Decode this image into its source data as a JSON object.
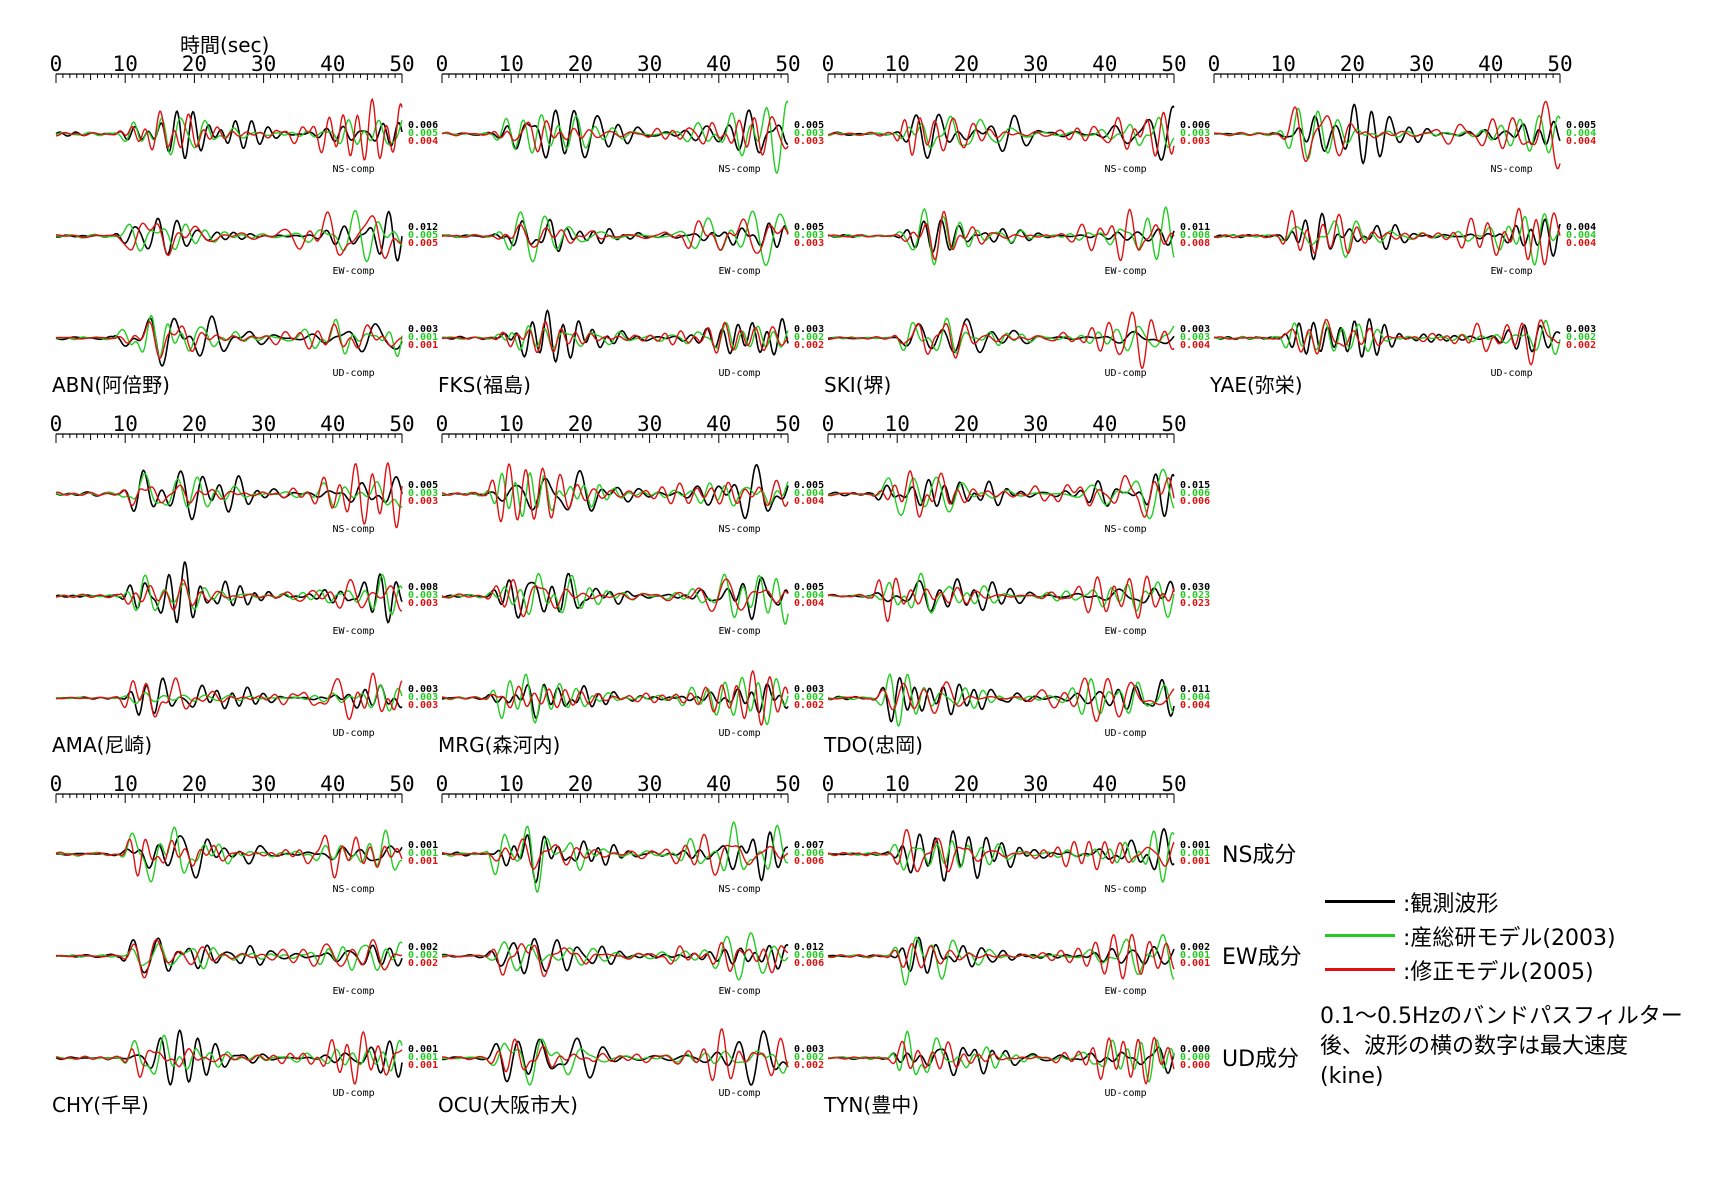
{
  "chart_data": {
    "type": "line",
    "time_axis_label": "時間(sec)",
    "x_ticks": [
      0,
      10,
      20,
      30,
      40,
      50
    ],
    "xlim": [
      0,
      50
    ],
    "series_legend": [
      {
        "key": "obs",
        "name": ":観測波形",
        "color": "#000000"
      },
      {
        "key": "aist",
        "name": ":産総研モデル(2003)",
        "color": "#22cc22"
      },
      {
        "key": "mod",
        "name": ":修正モデル(2005)",
        "color": "#dd1111"
      }
    ],
    "component_labels": {
      "NS": "NS-comp",
      "EW": "EW-comp",
      "UD": "UD-comp"
    },
    "row_side_labels": [
      "NS成分",
      "EW成分",
      "UD成分"
    ],
    "note": "0.1〜0.5Hzのバンドパスフィルター後、波形の横の数字は最大速度(kine)",
    "stations": [
      {
        "code": "ABN",
        "label": "ABN(阿倍野)",
        "row": 0,
        "col": 0,
        "peaks": {
          "NS": [
            "0.006",
            "0.005",
            "0.004"
          ],
          "EW": [
            "0.012",
            "0.005",
            "0.005"
          ],
          "UD": [
            "0.003",
            "0.001",
            "0.001"
          ]
        }
      },
      {
        "code": "FKS",
        "label": "FKS(福島)",
        "row": 0,
        "col": 1,
        "peaks": {
          "NS": [
            "0.005",
            "0.003",
            "0.003"
          ],
          "EW": [
            "0.005",
            "0.003",
            "0.003"
          ],
          "UD": [
            "0.003",
            "0.002",
            "0.002"
          ]
        }
      },
      {
        "code": "SKI",
        "label": "SKI(堺)",
        "row": 0,
        "col": 2,
        "peaks": {
          "NS": [
            "0.006",
            "0.003",
            "0.003"
          ],
          "EW": [
            "0.011",
            "0.008",
            "0.008"
          ],
          "UD": [
            "0.003",
            "0.003",
            "0.004"
          ]
        }
      },
      {
        "code": "YAE",
        "label": "YAE(弥栄)",
        "row": 0,
        "col": 3,
        "peaks": {
          "NS": [
            "0.005",
            "0.004",
            "0.004"
          ],
          "EW": [
            "0.004",
            "0.004",
            "0.004"
          ],
          "UD": [
            "0.003",
            "0.002",
            "0.002"
          ]
        }
      },
      {
        "code": "AMA",
        "label": "AMA(尼崎)",
        "row": 1,
        "col": 0,
        "peaks": {
          "NS": [
            "0.005",
            "0.003",
            "0.003"
          ],
          "EW": [
            "0.008",
            "0.003",
            "0.003"
          ],
          "UD": [
            "0.003",
            "0.003",
            "0.003"
          ]
        }
      },
      {
        "code": "MRG",
        "label": "MRG(森河内)",
        "row": 1,
        "col": 1,
        "peaks": {
          "NS": [
            "0.005",
            "0.004",
            "0.004"
          ],
          "EW": [
            "0.005",
            "0.004",
            "0.004"
          ],
          "UD": [
            "0.003",
            "0.002",
            "0.002"
          ]
        }
      },
      {
        "code": "TDO",
        "label": "TDO(忠岡)",
        "row": 1,
        "col": 2,
        "peaks": {
          "NS": [
            "0.015",
            "0.006",
            "0.006"
          ],
          "EW": [
            "0.030",
            "0.023",
            "0.023"
          ],
          "UD": [
            "0.011",
            "0.004",
            "0.004"
          ]
        }
      },
      {
        "code": "CHY",
        "label": "CHY(千早)",
        "row": 2,
        "col": 0,
        "peaks": {
          "NS": [
            "0.001",
            "0.001",
            "0.001"
          ],
          "EW": [
            "0.002",
            "0.002",
            "0.002"
          ],
          "UD": [
            "0.001",
            "0.001",
            "0.001"
          ]
        }
      },
      {
        "code": "OCU",
        "label": "OCU(大阪市大)",
        "row": 2,
        "col": 1,
        "peaks": {
          "NS": [
            "0.007",
            "0.006",
            "0.006"
          ],
          "EW": [
            "0.012",
            "0.006",
            "0.006"
          ],
          "UD": [
            "0.003",
            "0.002",
            "0.002"
          ]
        }
      },
      {
        "code": "TYN",
        "label": "TYN(豊中)",
        "row": 2,
        "col": 2,
        "peaks": {
          "NS": [
            "0.001",
            "0.001",
            "0.001"
          ],
          "EW": [
            "0.002",
            "0.001",
            "0.001"
          ],
          "UD": [
            "0.000",
            "0.000",
            "0.000"
          ]
        }
      }
    ]
  }
}
